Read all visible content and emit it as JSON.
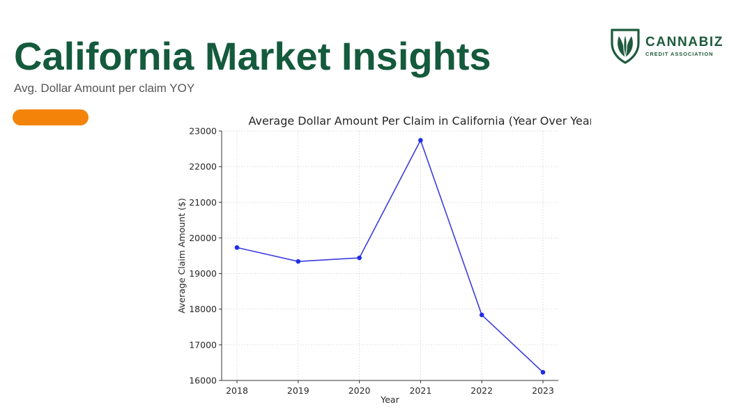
{
  "header": {
    "title": "California Market Insights",
    "subtitle": "Avg. Dollar Amount per claim YOY",
    "accent_color": "#f38409",
    "title_color": "#145a3c"
  },
  "logo": {
    "name": "CANNABIZ",
    "tagline": "CREDIT ASSOCIATION",
    "icon": "leaf-shield-icon",
    "color": "#1d5a3d"
  },
  "chart_data": {
    "type": "line",
    "title": "Average Dollar Amount Per Claim in California (Year Over Year)",
    "xlabel": "Year",
    "ylabel": "Average Claim Amount ($)",
    "x": [
      "2018",
      "2019",
      "2020",
      "2021",
      "2022",
      "2023"
    ],
    "y": [
      19730,
      19340,
      19440,
      22740,
      17840,
      16230
    ],
    "ylim": [
      16000,
      23000
    ],
    "yticks": [
      "16000",
      "17000",
      "18000",
      "19000",
      "20000",
      "21000",
      "22000",
      "23000"
    ],
    "grid": true,
    "line_color": "#3b3be0",
    "marker_color": "#1f2ee6"
  }
}
